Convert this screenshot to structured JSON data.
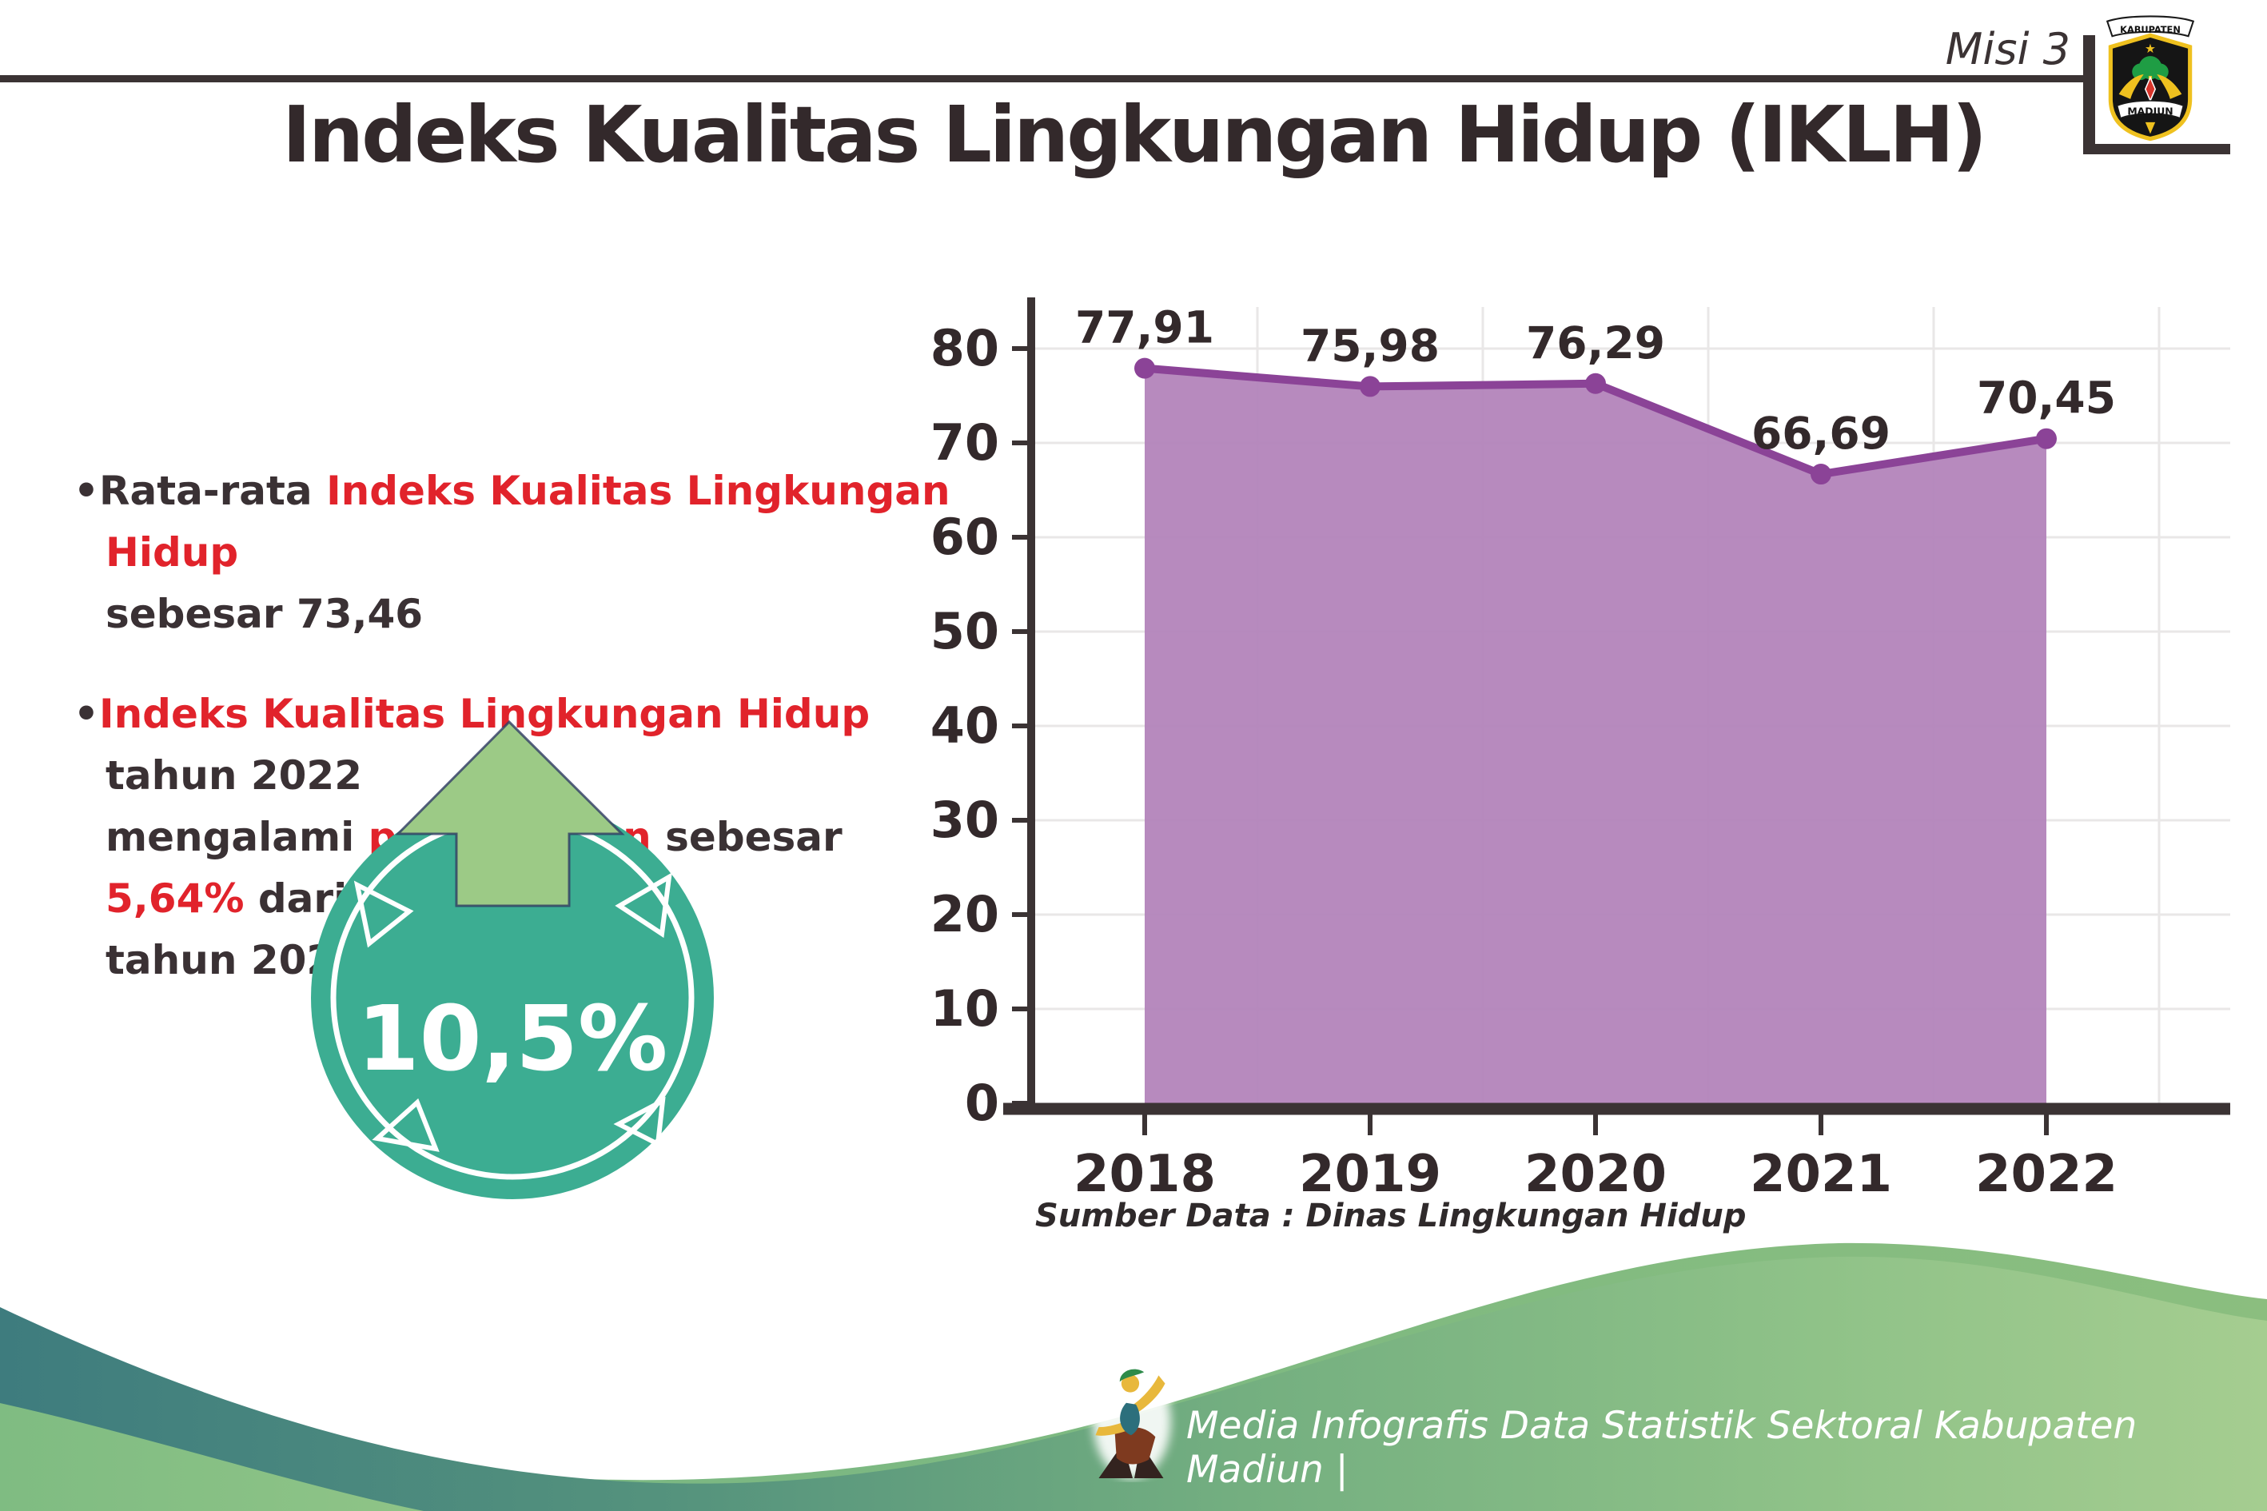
{
  "header": {
    "misi": "Misi 3",
    "title": "Indeks Kualitas Lingkungan Hidup (IKLH)",
    "logo": {
      "top": "KABUPATEN",
      "bottom": "MADIUN"
    }
  },
  "bullets": {
    "b1": [
      {
        "t": "•",
        "c": "dark"
      },
      {
        "t": "Rata-rata ",
        "c": "dark"
      },
      {
        "t": "Indeks Kualitas Lingkungan Hidup",
        "c": "red"
      },
      {
        "br": true
      },
      {
        "t": "sebesar 73,46",
        "c": "dark"
      }
    ],
    "b2": [
      {
        "t": "•",
        "c": "dark"
      },
      {
        "t": "Indeks Kualitas Lingkungan Hidup",
        "c": "red"
      },
      {
        "t": " tahun 2022",
        "c": "dark"
      },
      {
        "br": true
      },
      {
        "t": "mengalami ",
        "c": "dark"
      },
      {
        "t": "peningkatan",
        "c": "red"
      },
      {
        "t": " sebesar ",
        "c": "dark"
      },
      {
        "t": "5,64%",
        "c": "red"
      },
      {
        "t": " dari",
        "c": "dark"
      },
      {
        "br": true
      },
      {
        "t": "tahun 2021",
        "c": "dark"
      }
    ]
  },
  "badge": {
    "value": "10,5%"
  },
  "chart_data": {
    "type": "area",
    "categories": [
      "2018",
      "2019",
      "2020",
      "2021",
      "2022"
    ],
    "values": [
      77.91,
      75.98,
      76.29,
      66.69,
      70.45
    ],
    "labels": [
      "77,91",
      "75,98",
      "76,29",
      "66,69",
      "70,45"
    ],
    "title": "Indeks Kualitas Lingkungan Hidup (IKLH)",
    "xlabel": "",
    "ylabel": "",
    "ylim": [
      0,
      80
    ],
    "ytick_step": 10,
    "grid": true,
    "legend": "none"
  },
  "source": "Sumber Data : Dinas Lingkungan Hidup",
  "footer": {
    "text": "Media Infografis Data Statistik Sektoral Kabupaten Madiun |"
  },
  "colors": {
    "red": "#E1232B",
    "dark_text": "#3A3134",
    "axis": "#3B3334",
    "grid": "#E9E7E7",
    "area_fill": "#B384BB",
    "line": "#8B4397",
    "badge_teal": "#3CAD92",
    "arrow_green": "#9CCA86",
    "wave_teal": "#3E7C7E",
    "wave_green": "#A5CD90"
  }
}
